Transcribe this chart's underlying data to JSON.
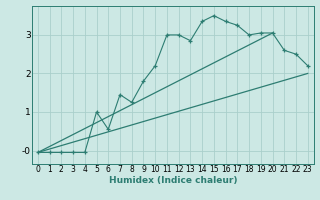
{
  "xlabel": "Humidex (Indice chaleur)",
  "bg_color": "#cce8e4",
  "grid_color": "#aacfcb",
  "line_color": "#2d7d72",
  "spine_color": "#2d7d72",
  "xlim": [
    -0.5,
    23.5
  ],
  "ylim": [
    -0.35,
    3.75
  ],
  "yticks": [
    0,
    1,
    2,
    3
  ],
  "ytick_labels": [
    "-0",
    "1",
    "2",
    "3"
  ],
  "xticks": [
    0,
    1,
    2,
    3,
    4,
    5,
    6,
    7,
    8,
    9,
    10,
    11,
    12,
    13,
    14,
    15,
    16,
    17,
    18,
    19,
    20,
    21,
    22,
    23
  ],
  "data_x": [
    0,
    1,
    2,
    3,
    4,
    5,
    6,
    7,
    8,
    9,
    10,
    11,
    12,
    13,
    14,
    15,
    16,
    17,
    18,
    19,
    20,
    21,
    22,
    23
  ],
  "data_y": [
    -0.05,
    -0.05,
    -0.05,
    -0.05,
    -0.05,
    1.0,
    0.55,
    1.45,
    1.25,
    1.8,
    2.2,
    3.0,
    3.0,
    2.85,
    3.35,
    3.5,
    3.35,
    3.25,
    3.0,
    3.05,
    3.05,
    2.6,
    2.5,
    2.2
  ],
  "trend1_x": [
    0,
    23
  ],
  "trend1_y": [
    -0.05,
    2.0
  ],
  "trend2_x": [
    0,
    20
  ],
  "trend2_y": [
    -0.05,
    3.05
  ],
  "xlabel_fontsize": 6.5,
  "tick_fontsize": 5.5,
  "ytick_fontsize": 6.5
}
